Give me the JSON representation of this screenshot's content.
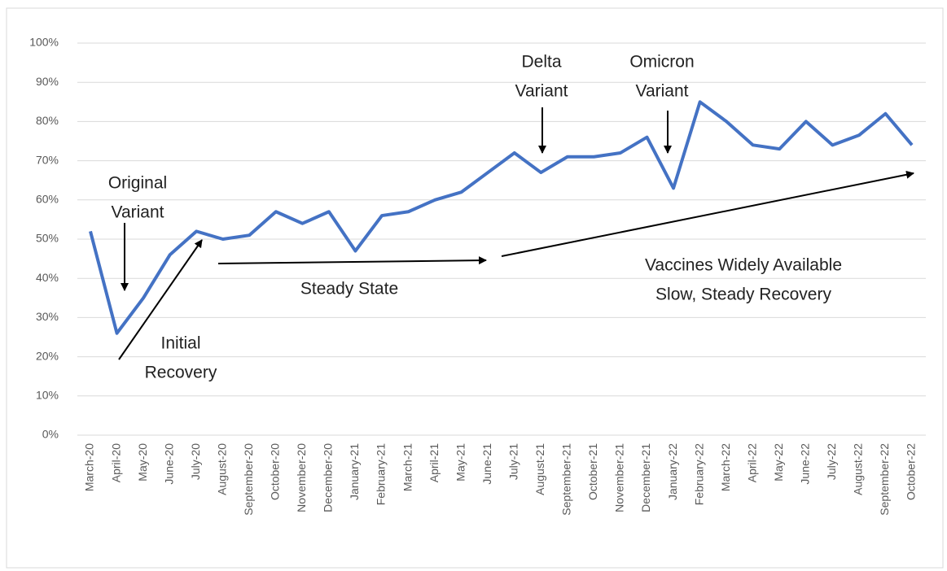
{
  "chart_data": {
    "type": "line",
    "categories": [
      "March-20",
      "April-20",
      "May-20",
      "June-20",
      "July-20",
      "August-20",
      "September-20",
      "October-20",
      "November-20",
      "December-20",
      "January-21",
      "February-21",
      "March-21",
      "April-21",
      "May-21",
      "June-21",
      "July-21",
      "August-21",
      "September-21",
      "October-21",
      "November-21",
      "December-21",
      "January-22",
      "February-22",
      "March-22",
      "April-22",
      "May-22",
      "June-22",
      "July-22",
      "August-22",
      "September-22",
      "October-22"
    ],
    "values": [
      52,
      26,
      35,
      46,
      52,
      50,
      51,
      57,
      54,
      57,
      47,
      56,
      57,
      60,
      62,
      67,
      72,
      67,
      71,
      71,
      72,
      76,
      63,
      85,
      80,
      74,
      73,
      80,
      74,
      76.5,
      82,
      74
    ],
    "color": "#4472c4",
    "ylim": [
      0,
      100
    ],
    "yticks": [
      {
        "value": 0,
        "label": "0%"
      },
      {
        "value": 10,
        "label": "10%"
      },
      {
        "value": 20,
        "label": "20%"
      },
      {
        "value": 30,
        "label": "30%"
      },
      {
        "value": 40,
        "label": "40%"
      },
      {
        "value": 50,
        "label": "50%"
      },
      {
        "value": 60,
        "label": "60%"
      },
      {
        "value": 70,
        "label": "70%"
      },
      {
        "value": 80,
        "label": "80%"
      },
      {
        "value": 90,
        "label": "90%"
      },
      {
        "value": 100,
        "label": "100%"
      }
    ],
    "grid": true,
    "annotations": [
      {
        "lines": [
          "Original",
          "Variant"
        ]
      },
      {
        "lines": [
          "Initial",
          "Recovery"
        ]
      },
      {
        "lines": [
          "Steady State"
        ]
      },
      {
        "lines": [
          "Delta",
          "Variant"
        ]
      },
      {
        "lines": [
          "Omicron",
          "Variant"
        ]
      },
      {
        "lines": [
          "Vaccines Widely Available",
          "Slow, Steady Recovery"
        ]
      }
    ]
  }
}
